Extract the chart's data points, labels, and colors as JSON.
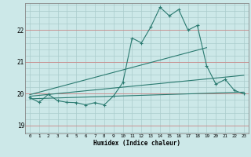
{
  "title": "",
  "xlabel": "Humidex (Indice chaleur)",
  "bg_color": "#cce8e8",
  "grid_color_major": "#aacccc",
  "grid_color_minor": "#bbdddd",
  "line_color": "#2a7a70",
  "xlim": [
    -0.5,
    23.5
  ],
  "ylim": [
    18.75,
    22.85
  ],
  "yticks": [
    19,
    20,
    21,
    22
  ],
  "xticks": [
    0,
    1,
    2,
    3,
    4,
    5,
    6,
    7,
    8,
    9,
    10,
    11,
    12,
    13,
    14,
    15,
    16,
    17,
    18,
    19,
    20,
    21,
    22,
    23
  ],
  "zigzag_x": [
    0,
    1,
    2,
    3,
    4,
    5,
    6,
    7,
    8,
    9,
    10,
    11,
    12,
    13,
    14,
    15,
    16,
    17,
    18,
    19,
    20,
    21,
    22,
    23
  ],
  "zigzag_y": [
    19.88,
    19.73,
    19.98,
    19.78,
    19.73,
    19.72,
    19.65,
    19.72,
    19.65,
    19.93,
    20.35,
    21.75,
    21.6,
    22.1,
    22.72,
    22.45,
    22.65,
    22.0,
    22.15,
    20.88,
    20.3,
    20.45,
    20.1,
    20.0
  ],
  "line1_x": [
    0,
    23
  ],
  "line1_y": [
    19.84,
    20.05
  ],
  "line2_x": [
    0,
    23
  ],
  "line2_y": [
    19.92,
    20.58
  ],
  "line3_x": [
    0,
    19
  ],
  "line3_y": [
    19.97,
    21.45
  ]
}
